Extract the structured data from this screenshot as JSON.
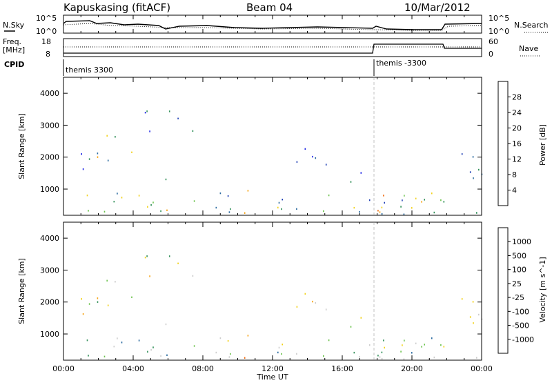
{
  "header": {
    "station": "Kapuskasing (fitACF)",
    "beam": "Beam 04",
    "date": "10/Mar/2012"
  },
  "panels": {
    "noise": {
      "left_label": "N.Sky",
      "right_label": "N.Search",
      "left_ticks": [
        "10^5",
        "10^0"
      ],
      "right_ticks": [
        "10^5",
        "10^0"
      ]
    },
    "freq": {
      "left_label_1": "Freq.",
      "left_label_2": "[MHz]",
      "right_label": "Nave",
      "left_ticks": [
        "18",
        "8"
      ],
      "right_ticks": [
        "60",
        "0"
      ]
    },
    "cpid": {
      "label": "CPID",
      "modes": [
        {
          "name": "themis 3300",
          "start_hour": 0
        },
        {
          "name": "themis -3300",
          "start_hour": 18
        }
      ]
    }
  },
  "chart_data": [
    {
      "type": "heatmap",
      "panel": "power",
      "ylabel": "Slant Range [km]",
      "xlabel": "Time UT",
      "ylim": [
        180,
        4500
      ],
      "y_ticks": [
        1000,
        2000,
        3000,
        4000
      ],
      "x_ticks": [
        "00:00",
        "04:00",
        "08:00",
        "12:00",
        "16:00",
        "20:00",
        "00:00"
      ],
      "xlim_hours": [
        0,
        24
      ],
      "colorbar_label": "Power [dB]",
      "colorbar_ticks": [
        "28",
        "24",
        "20",
        "16",
        "12",
        "8",
        "4"
      ],
      "colorbar_range": [
        0,
        30
      ],
      "scatter_regions": [
        {
          "t": [
            0.0,
            1.8
          ],
          "r": [
            1600,
            2400
          ],
          "level": 0.25
        },
        {
          "t": [
            1.8,
            4.2
          ],
          "r": [
            1900,
            2900
          ],
          "level": 0.45
        },
        {
          "t": [
            4.2,
            6.5
          ],
          "r": [
            2800,
            3600
          ],
          "level": 0.2
        },
        {
          "t": [
            6.5,
            7.6
          ],
          "r": [
            2600,
            3300
          ],
          "level": 0.3
        },
        {
          "t": [
            13.3,
            15.0
          ],
          "r": [
            1500,
            2400
          ],
          "level": 0.2
        },
        {
          "t": [
            15.0,
            17.3
          ],
          "r": [
            1250,
            1800
          ],
          "level": 0.25
        },
        {
          "t": [
            22.0,
            24.0
          ],
          "r": [
            1000,
            2200
          ],
          "level": 0.35
        },
        {
          "t": [
            0.0,
            24.0
          ],
          "r": [
            200,
            900
          ],
          "level": 0.4
        },
        {
          "t": [
            5.3,
            6.1
          ],
          "r": [
            200,
            1400
          ],
          "level": 0.6
        },
        {
          "t": [
            10.3,
            11.2
          ],
          "r": [
            200,
            1100
          ],
          "level": 0.8
        },
        {
          "t": [
            18.0,
            22.0
          ],
          "r": [
            200,
            850
          ],
          "level": 0.6
        }
      ]
    },
    {
      "type": "heatmap",
      "panel": "velocity",
      "ylabel": "Slant Range [km]",
      "xlabel": "Time UT",
      "ylim": [
        180,
        4500
      ],
      "y_ticks": [
        1000,
        2000,
        3000,
        4000
      ],
      "x_ticks": [
        "00:00",
        "04:00",
        "08:00",
        "12:00",
        "16:00",
        "20:00",
        "00:00"
      ],
      "xlim_hours": [
        0,
        24
      ],
      "colorbar_label": "Velocity [m s^-1]",
      "colorbar_ticks": [
        "1000",
        "500",
        "100",
        "25",
        "-25",
        "-100",
        "-500",
        "-1000"
      ],
      "colorbar_range": [
        -1000,
        1000
      ],
      "scatter_regions": [
        {
          "t": [
            0.0,
            1.8
          ],
          "r": [
            1600,
            2400
          ],
          "level": 0.5
        },
        {
          "t": [
            1.8,
            4.2
          ],
          "r": [
            1900,
            2900
          ],
          "level": 0.5
        },
        {
          "t": [
            4.2,
            6.5
          ],
          "r": [
            2800,
            3600
          ],
          "level": 0.5
        },
        {
          "t": [
            6.5,
            7.6
          ],
          "r": [
            2600,
            3300
          ],
          "level": 0.5
        },
        {
          "t": [
            13.3,
            15.0
          ],
          "r": [
            1500,
            2400
          ],
          "level": 0.45
        },
        {
          "t": [
            15.0,
            17.3
          ],
          "r": [
            1250,
            1800
          ],
          "level": 0.5
        },
        {
          "t": [
            22.0,
            24.0
          ],
          "r": [
            1000,
            2200
          ],
          "level": 0.5
        },
        {
          "t": [
            0.0,
            24.0
          ],
          "r": [
            200,
            900
          ],
          "level": 0.6
        },
        {
          "t": [
            5.3,
            6.1
          ],
          "r": [
            200,
            1400
          ],
          "level": 0.7
        },
        {
          "t": [
            10.3,
            11.2
          ],
          "r": [
            200,
            1100
          ],
          "level": 0.3
        },
        {
          "t": [
            18.0,
            22.0
          ],
          "r": [
            200,
            850
          ],
          "level": 0.5
        }
      ]
    }
  ],
  "colors": {
    "power_scale": [
      "#1d24e6",
      "#1f3fb5",
      "#2a6aa0",
      "#2f8f57",
      "#6cc34d",
      "#f2d21a",
      "#f7a414",
      "#f06a0e",
      "#e8190d"
    ],
    "velocity_scale": [
      "#e8190d",
      "#f06a0e",
      "#f7a414",
      "#f2d21a",
      "#cccccc",
      "#cccccc",
      "#6cc34d",
      "#2f8f57",
      "#2a6aa0",
      "#1d24e6"
    ]
  }
}
